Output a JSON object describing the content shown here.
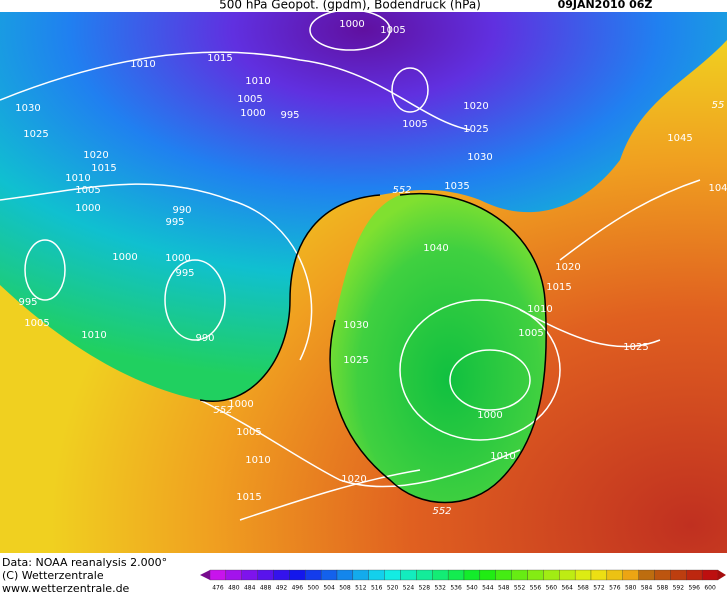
{
  "header": {
    "title": "500 hPa Geopot. (gpdm), Bodendruck (hPa)",
    "date": "09JAN2010 06Z"
  },
  "labels": [
    "1000",
    "1005",
    "1010",
    "1015",
    "1010",
    "1005",
    "1000",
    "995",
    "1030",
    "1025",
    "1020",
    "1015",
    "1010",
    "1005",
    "1000",
    "990",
    "995",
    "1000",
    "1000",
    "995",
    "990",
    "995",
    "1005",
    "1010",
    "1020",
    "1025",
    "1005",
    "1030",
    "1035",
    "1040",
    "1030",
    "1025",
    "1020",
    "1015",
    "1010",
    "1005",
    "1000",
    "1010",
    "1020",
    "1000",
    "1005",
    "1010",
    "1015",
    "1025",
    "1045",
    "104",
    "552",
    "552",
    "552",
    "55"
  ],
  "footer": {
    "source": "Data: NOAA reanalysis 2.000°",
    "copyright": "(C) Wetterzentrale",
    "website": "www.wetterzentrale.de"
  },
  "scale": [
    "476",
    "480",
    "484",
    "488",
    "492",
    "496",
    "500",
    "504",
    "508",
    "512",
    "516",
    "520",
    "524",
    "528",
    "532",
    "536",
    "540",
    "544",
    "548",
    "552",
    "556",
    "560",
    "564",
    "568",
    "572",
    "576",
    "580",
    "584",
    "588",
    "592",
    "596",
    "600"
  ]
}
